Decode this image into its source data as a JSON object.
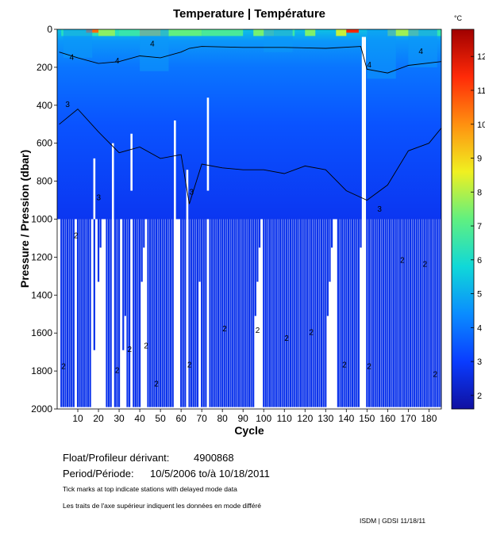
{
  "chart_data": {
    "type": "heatmap",
    "title": "Temperature | Température",
    "xlabel": "Cycle",
    "ylabel": "Pressure / Pression (dbar)",
    "colorbar_unit": "°C",
    "xlim": [
      0,
      186
    ],
    "ylim": [
      0,
      2000
    ],
    "y_inverted": true,
    "x_ticks": [
      10,
      20,
      30,
      40,
      50,
      60,
      70,
      80,
      90,
      100,
      110,
      120,
      130,
      140,
      150,
      160,
      170,
      180
    ],
    "y_ticks": [
      0,
      200,
      400,
      600,
      800,
      1000,
      1200,
      1400,
      1600,
      1800,
      2000
    ],
    "colorbar_range": [
      1.6,
      12.8
    ],
    "colorbar_ticks": [
      2,
      3,
      4,
      5,
      6,
      7,
      8,
      9,
      10,
      11,
      12
    ],
    "colormap": [
      "#1010a0",
      "#0a3cff",
      "#0a8cff",
      "#10d8d8",
      "#60f080",
      "#f0f020",
      "#ff9010",
      "#ff2a08",
      "#a00000"
    ],
    "contour_labels": [
      "2",
      "3",
      "4"
    ],
    "contour_4C_depth_dbar": [
      [
        1,
        120
      ],
      [
        10,
        150
      ],
      [
        20,
        180
      ],
      [
        30,
        170
      ],
      [
        40,
        140
      ],
      [
        50,
        150
      ],
      [
        60,
        120
      ],
      [
        64,
        100
      ],
      [
        70,
        90
      ],
      [
        90,
        95
      ],
      [
        110,
        95
      ],
      [
        130,
        100
      ],
      [
        147,
        90
      ],
      [
        150,
        210
      ],
      [
        160,
        230
      ],
      [
        170,
        190
      ],
      [
        186,
        170
      ]
    ],
    "contour_3C_depth_dbar": [
      [
        1,
        500
      ],
      [
        10,
        420
      ],
      [
        20,
        540
      ],
      [
        30,
        650
      ],
      [
        40,
        620
      ],
      [
        50,
        680
      ],
      [
        60,
        660
      ],
      [
        64,
        920
      ],
      [
        70,
        710
      ],
      [
        80,
        730
      ],
      [
        90,
        740
      ],
      [
        100,
        740
      ],
      [
        110,
        760
      ],
      [
        120,
        720
      ],
      [
        130,
        740
      ],
      [
        140,
        850
      ],
      [
        150,
        900
      ],
      [
        160,
        820
      ],
      [
        170,
        640
      ],
      [
        180,
        600
      ],
      [
        186,
        520
      ]
    ],
    "profiles_to_2000_dbar": [
      [
        2,
        8
      ],
      [
        10,
        16
      ],
      [
        24,
        30
      ],
      [
        34,
        40
      ],
      [
        44,
        56
      ],
      [
        60,
        68
      ],
      [
        70,
        95
      ],
      [
        100,
        130
      ],
      [
        136,
        146
      ],
      [
        150,
        186
      ]
    ],
    "profile_gaps_cycles": [
      19,
      27,
      36,
      58,
      63,
      73,
      148,
      149
    ]
  },
  "info": {
    "float_label": "Float/Profileur dérivant:",
    "float_value": "4900868",
    "period_label": "Period/Période:",
    "period_value": "10/5/2006  to/à  10/18/2011",
    "note_en": "Tick marks at top indicate stations with delayed mode data",
    "note_fr": "Les traits de l'axe supérieur indiquent les données en mode différé",
    "credit": "ISDM | GDSI  11/18/11"
  }
}
